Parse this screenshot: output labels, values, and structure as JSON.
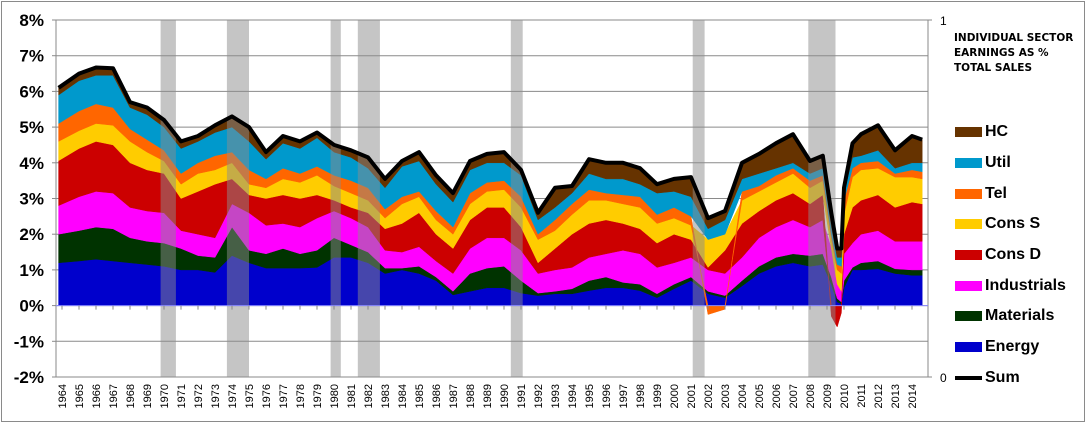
{
  "chart_data": {
    "type": "area",
    "stacked": true,
    "title": "INDIVIDUAL SECTOR EARNINGS AS % TOTAL SALES",
    "xlabel": "",
    "ylabel": "",
    "ylim": [
      -2,
      8
    ],
    "y_ticks": [
      "-2%",
      "-1%",
      "0%",
      "1%",
      "2%",
      "3%",
      "4%",
      "5%",
      "6%",
      "7%",
      "8%"
    ],
    "y2_ticks": [
      "0",
      "1"
    ],
    "x_tick_labels": [
      "1964",
      "1965",
      "1966",
      "1967",
      "1968",
      "1969",
      "1970",
      "1971",
      "1972",
      "1973",
      "1974",
      "1975",
      "1976",
      "1977",
      "1978",
      "1979",
      "1980",
      "1981",
      "1982",
      "1983",
      "1984",
      "1985",
      "1986",
      "1987",
      "1988",
      "1989",
      "1990",
      "1991",
      "1992",
      "1993",
      "1994",
      "1995",
      "1996",
      "1997",
      "1998",
      "1999",
      "2000",
      "2001",
      "2002",
      "2003",
      "2004",
      "2005",
      "2006",
      "2007",
      "2008",
      "2009",
      "2010",
      "2011",
      "2012",
      "2013",
      "2014"
    ],
    "grid": true,
    "legend_position": "right",
    "recessions": [
      [
        1969.8,
        1970.7
      ],
      [
        1973.7,
        1975.0
      ],
      [
        1979.8,
        1980.4
      ],
      [
        1981.4,
        1982.7
      ],
      [
        1990.4,
        1991.1
      ],
      [
        2001.1,
        2001.8
      ],
      [
        2007.9,
        2009.5
      ]
    ],
    "x": [
      1963.8,
      1965,
      1966,
      1967,
      1968,
      1969,
      1970,
      1971,
      1972,
      1973,
      1974,
      1975,
      1976,
      1977,
      1978,
      1979,
      1980,
      1981,
      1982,
      1983,
      1984,
      1985,
      1986,
      1987,
      1988,
      1989,
      1990,
      1991,
      1992,
      1993,
      1994,
      1995,
      1996,
      1997,
      1998,
      1999,
      2000,
      2001,
      2002,
      2003,
      2004,
      2005,
      2006,
      2007,
      2008,
      2008.75,
      2009.25,
      2009.6,
      2009.85,
      2010,
      2010.5,
      2011,
      2012,
      2013,
      2014,
      2014.6
    ],
    "series": [
      {
        "name": "Energy",
        "color": "#0000cc",
        "values": [
          1.2,
          1.25,
          1.3,
          1.25,
          1.2,
          1.15,
          1.1,
          1.0,
          1.0,
          0.93,
          1.4,
          1.2,
          1.05,
          1.05,
          1.05,
          1.07,
          1.35,
          1.35,
          1.2,
          0.9,
          1.0,
          0.9,
          0.7,
          0.3,
          0.4,
          0.5,
          0.5,
          0.35,
          0.28,
          0.33,
          0.33,
          0.42,
          0.5,
          0.5,
          0.42,
          0.22,
          0.47,
          0.7,
          0.33,
          0.22,
          0.55,
          0.9,
          1.1,
          1.2,
          1.1,
          1.15,
          0.6,
          0.1,
          0.05,
          0.5,
          1.0,
          1.0,
          1.03,
          0.9,
          0.85,
          0.85
        ]
      },
      {
        "name": "Materials",
        "color": "#003300",
        "values": [
          0.8,
          0.85,
          0.9,
          0.9,
          0.7,
          0.65,
          0.65,
          0.6,
          0.4,
          0.42,
          0.8,
          0.35,
          0.4,
          0.55,
          0.4,
          0.48,
          0.55,
          0.35,
          0.3,
          0.15,
          0.05,
          0.2,
          0.1,
          0.1,
          0.5,
          0.55,
          0.6,
          0.35,
          0.07,
          0.07,
          0.14,
          0.28,
          0.3,
          0.15,
          0.18,
          0.11,
          0.13,
          0.1,
          0.07,
          0.06,
          0.15,
          0.2,
          0.25,
          0.25,
          0.3,
          0.3,
          0.2,
          0.1,
          0.05,
          0.2,
          0.07,
          0.2,
          0.22,
          0.13,
          0.15,
          0.15
        ]
      },
      {
        "name": "Industrials",
        "color": "#ff00ff",
        "values": [
          0.8,
          0.95,
          1.0,
          1.0,
          0.85,
          0.85,
          0.85,
          0.5,
          0.6,
          0.55,
          0.65,
          1.05,
          0.8,
          0.7,
          0.75,
          0.9,
          0.75,
          0.75,
          0.7,
          0.5,
          0.45,
          0.55,
          0.45,
          0.5,
          0.7,
          0.85,
          0.8,
          0.85,
          0.55,
          0.6,
          0.6,
          0.65,
          0.65,
          0.9,
          0.85,
          0.74,
          0.6,
          0.55,
          0.6,
          0.62,
          0.65,
          0.8,
          0.85,
          0.95,
          0.8,
          0.95,
          0.8,
          0.4,
          0.3,
          0.75,
          0.68,
          0.8,
          0.85,
          0.77,
          0.8,
          0.8
        ]
      },
      {
        "name": "Cons D",
        "color": "#cc0000",
        "values": [
          1.26,
          1.35,
          1.4,
          1.35,
          1.25,
          1.15,
          1.1,
          0.9,
          1.2,
          1.5,
          0.7,
          0.5,
          0.75,
          0.8,
          0.8,
          0.65,
          0.3,
          0.3,
          0.4,
          0.6,
          0.8,
          0.95,
          0.75,
          0.7,
          0.8,
          0.85,
          0.85,
          0.65,
          0.3,
          0.6,
          0.93,
          0.95,
          0.95,
          0.75,
          0.7,
          0.68,
          0.8,
          0.5,
          0.07,
          0.65,
          0.95,
          0.75,
          0.75,
          0.75,
          0.65,
          0.7,
          -0.3,
          -0.6,
          -0.2,
          0.55,
          1.0,
          0.95,
          1.0,
          0.95,
          1.1,
          1.05
        ]
      },
      {
        "name": "Cons S",
        "color": "#ffcc00",
        "values": [
          0.54,
          0.5,
          0.5,
          0.55,
          0.6,
          0.5,
          0.35,
          0.4,
          0.5,
          0.4,
          0.45,
          0.3,
          0.3,
          0.45,
          0.45,
          0.55,
          0.4,
          0.4,
          0.35,
          0.3,
          0.55,
          0.45,
          0.4,
          0.4,
          0.45,
          0.45,
          0.5,
          0.55,
          0.65,
          0.5,
          0.55,
          0.65,
          0.55,
          0.55,
          0.6,
          0.55,
          0.45,
          0.4,
          0.78,
          0.45,
          0.65,
          0.55,
          0.5,
          0.55,
          0.45,
          0.4,
          0.3,
          0.4,
          0.5,
          0.55,
          0.85,
          0.85,
          0.75,
          0.85,
          0.7,
          0.7
        ]
      },
      {
        "name": "Tel",
        "color": "#ff6600",
        "values": [
          0.5,
          0.55,
          0.55,
          0.5,
          0.35,
          0.35,
          0.3,
          0.3,
          0.3,
          0.4,
          0.3,
          0.4,
          0.25,
          0.3,
          0.25,
          0.25,
          0.3,
          0.35,
          0.35,
          0.25,
          0.2,
          0.15,
          0.25,
          0.2,
          0.3,
          0.25,
          0.25,
          0.3,
          0.15,
          0.3,
          0.3,
          0.3,
          0.2,
          0.25,
          0.3,
          0.25,
          0.3,
          0.25,
          -0.25,
          -0.1,
          0.25,
          0.15,
          0.2,
          0.15,
          0.2,
          0.15,
          0.1,
          0.15,
          0.2,
          0.4,
          0.25,
          0.2,
          0.2,
          0.1,
          0.2,
          0.2
        ]
      },
      {
        "name": "Util",
        "color": "#0099cc",
        "values": [
          0.8,
          0.85,
          0.8,
          0.9,
          0.6,
          0.7,
          0.65,
          0.7,
          0.6,
          0.65,
          0.7,
          0.8,
          0.55,
          0.7,
          0.7,
          0.8,
          0.65,
          0.65,
          0.55,
          0.6,
          0.85,
          0.85,
          0.75,
          0.7,
          0.65,
          0.55,
          0.5,
          0.6,
          0.4,
          0.35,
          0.3,
          0.45,
          0.4,
          0.45,
          0.35,
          0.6,
          0.45,
          0.55,
          0.3,
          0.4,
          0.35,
          0.35,
          0.2,
          0.15,
          0.2,
          0.2,
          0.2,
          0.2,
          0.25,
          0.2,
          0.3,
          0.2,
          0.3,
          0.15,
          0.2,
          0.25
        ]
      },
      {
        "name": "HC",
        "color": "#663300",
        "values": [
          0.2,
          0.2,
          0.22,
          0.2,
          0.15,
          0.2,
          0.2,
          0.2,
          0.15,
          0.2,
          0.3,
          0.4,
          0.2,
          0.2,
          0.2,
          0.15,
          0.2,
          0.2,
          0.3,
          0.25,
          0.15,
          0.25,
          0.25,
          0.25,
          0.25,
          0.25,
          0.3,
          0.15,
          0.2,
          0.55,
          0.2,
          0.4,
          0.45,
          0.45,
          0.45,
          0.25,
          0.35,
          0.55,
          0.3,
          0.25,
          0.45,
          0.55,
          0.7,
          0.8,
          0.35,
          0.35,
          0.4,
          0.25,
          0.25,
          0.15,
          0.4,
          0.6,
          0.7,
          0.5,
          0.75,
          0.65
        ]
      }
    ],
    "sum_series": {
      "name": "Sum",
      "color": "#000000"
    }
  },
  "legend": [
    {
      "label": "HC",
      "color": "#663300"
    },
    {
      "label": "Util",
      "color": "#0099cc"
    },
    {
      "label": "Tel",
      "color": "#ff6600"
    },
    {
      "label": "Cons S",
      "color": "#ffcc00"
    },
    {
      "label": "Cons D",
      "color": "#cc0000"
    },
    {
      "label": "Industrials",
      "color": "#ff00ff"
    },
    {
      "label": "Materials",
      "color": "#003300"
    },
    {
      "label": "Energy",
      "color": "#0000cc"
    },
    {
      "label": "Sum",
      "color": "#000000"
    }
  ],
  "note": "INDIVIDUAL SECTOR EARNINGS AS % TOTAL SALES"
}
